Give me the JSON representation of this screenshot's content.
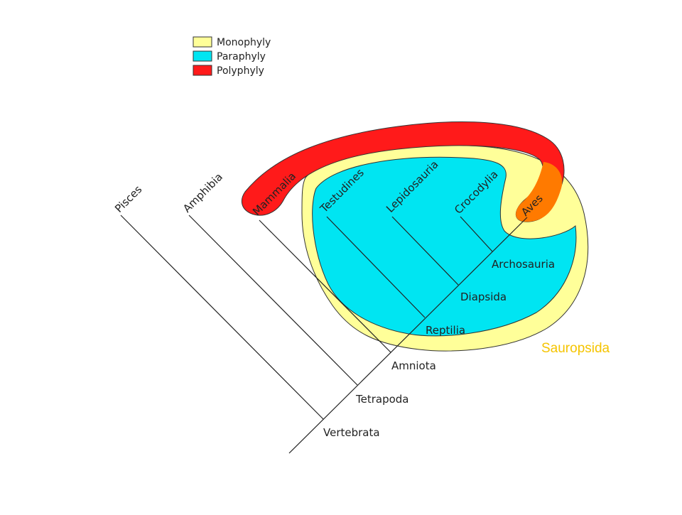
{
  "legend": {
    "items": [
      {
        "label": "Monophyly",
        "color": "#ffff99"
      },
      {
        "label": "Paraphyly",
        "color": "#00e5f2"
      },
      {
        "label": "Polyphyly",
        "color": "#ff1a1a"
      }
    ]
  },
  "regions": {
    "monophyly_color": "#ffff99",
    "paraphyly_color": "#00e5f2",
    "polyphyly_color": "#ff1a1a",
    "overlap_color": "#ff7a00",
    "stroke_color": "#333333"
  },
  "taxa": {
    "pisces": "Pisces",
    "amphibia": "Amphibia",
    "mammalia": "Mammalia",
    "testudines": "Testudines",
    "lepidosauria": "Lepidosauria",
    "crocodylia": "Crocodylia",
    "aves": "Aves"
  },
  "nodes": {
    "archosauria": "Archosauria",
    "diapsida": "Diapsida",
    "reptilia": "Reptilia",
    "amniota": "Amniota",
    "tetrapoda": "Tetrapoda",
    "vertebrata": "Vertebrata"
  },
  "group_label": {
    "text": "Sauropsida",
    "color": "#f5c400"
  }
}
